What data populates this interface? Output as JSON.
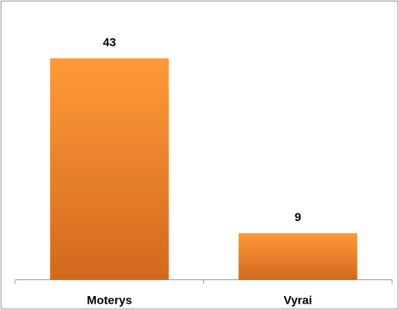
{
  "chart_data": {
    "type": "bar",
    "categories": [
      "Moterys",
      "Vyrai"
    ],
    "values": [
      43,
      9
    ],
    "color": "#f7902f",
    "ylim": [
      0,
      50
    ]
  }
}
